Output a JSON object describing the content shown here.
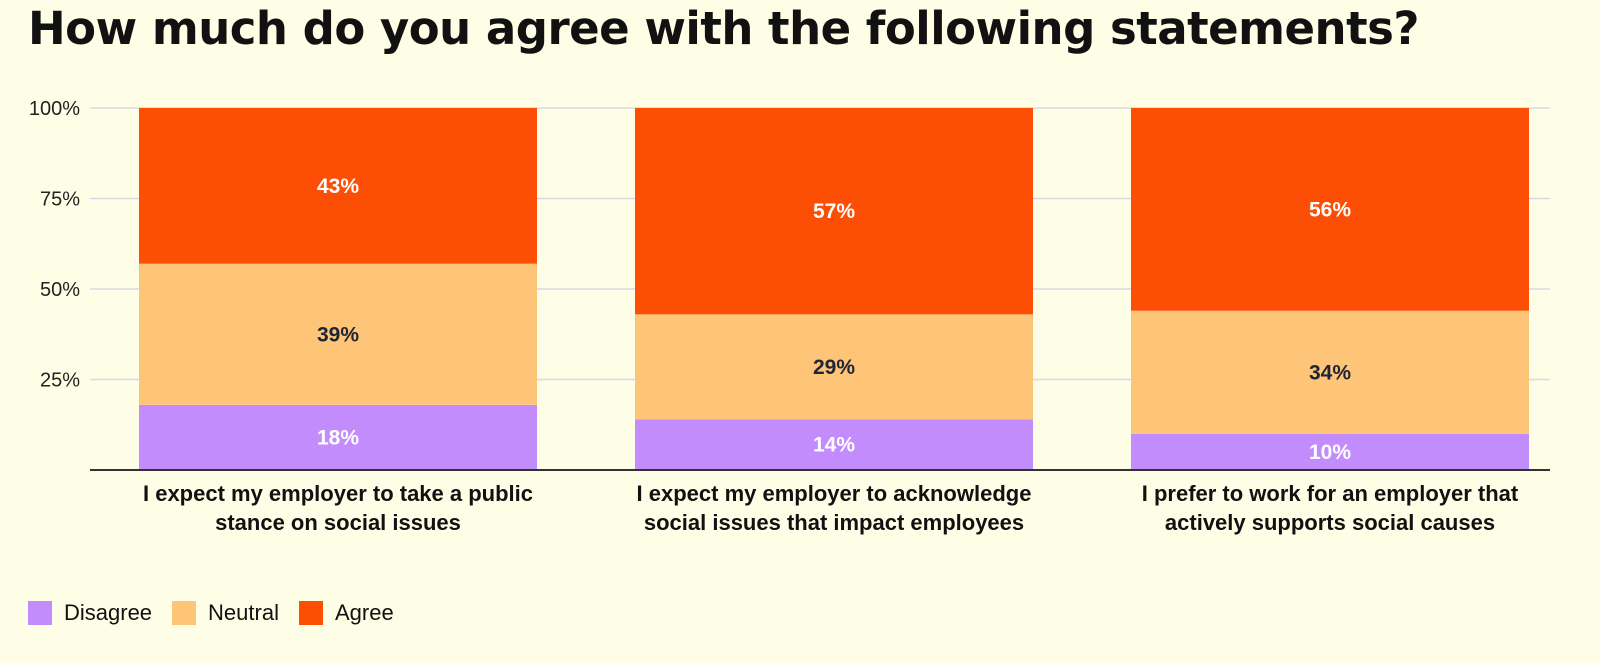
{
  "chart_data": {
    "type": "bar",
    "stacked": true,
    "title": "How much do you agree with the following statements?",
    "categories": [
      [
        "I expect my employer to take a public",
        "stance on social issues"
      ],
      [
        "I expect my employer to acknowledge",
        "social issues that impact employees"
      ],
      [
        "I prefer to work for an employer that",
        "actively supports social causes"
      ]
    ],
    "series": [
      {
        "name": "Disagree",
        "values": [
          18,
          14,
          10
        ],
        "color": "#c38cfd",
        "label_color": "#ffffff",
        "labels": [
          "18%",
          "14%",
          "10%"
        ]
      },
      {
        "name": "Neutral",
        "values": [
          39,
          29,
          34
        ],
        "color": "#fec477",
        "label_color": "#1e2535",
        "labels": [
          "39%",
          "29%",
          "34%"
        ]
      },
      {
        "name": "Agree",
        "values": [
          43,
          57,
          56
        ],
        "color": "#fc4e04",
        "label_color": "#ffffff",
        "labels": [
          "43%",
          "57%",
          "56%"
        ]
      }
    ],
    "ylim": [
      0,
      100
    ],
    "yticks": [
      25,
      50,
      75,
      100
    ],
    "ytick_labels": [
      "25%",
      "50%",
      "75%",
      "100%"
    ],
    "grid": true,
    "legend_position": "bottom-left"
  }
}
